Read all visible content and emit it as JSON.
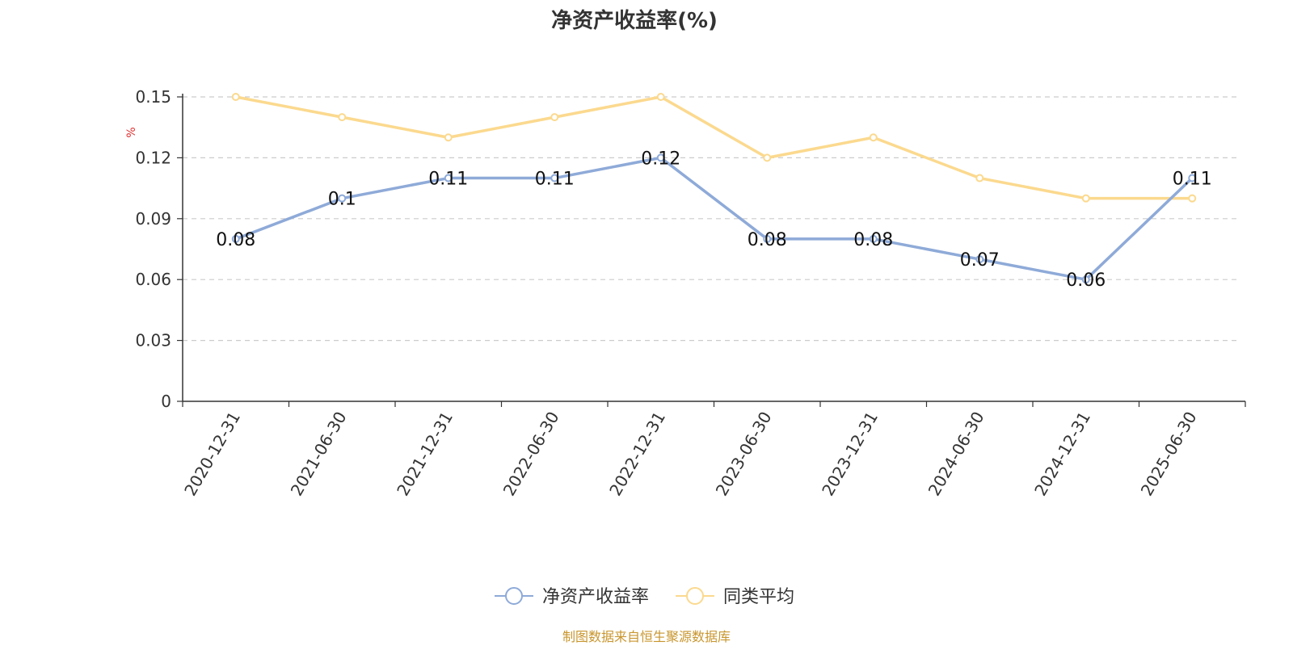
{
  "chart_data": {
    "type": "line",
    "title": "净资产收益率(%)",
    "ylabel": "%",
    "ylim": [
      0,
      0.15
    ],
    "yticks": [
      "0",
      "0.03",
      "0.06",
      "0.09",
      "0.12",
      "0.15"
    ],
    "grid": true,
    "legend_position": "bottom-center",
    "categories": [
      "2020-12-31",
      "2021-06-30",
      "2021-12-31",
      "2022-06-30",
      "2022-12-31",
      "2023-06-30",
      "2023-12-31",
      "2024-06-30",
      "2024-12-31",
      "2025-06-30"
    ],
    "series": [
      {
        "name": "净资产收益率",
        "color": "#8eaad8",
        "values": [
          0.08,
          0.1,
          0.11,
          0.11,
          0.12,
          0.08,
          0.08,
          0.07,
          0.06,
          0.11
        ],
        "labels": [
          "0.08",
          "0.1",
          "0.11",
          "0.11",
          "0.12",
          "0.08",
          "0.08",
          "0.07",
          "0.06",
          "0.11"
        ]
      },
      {
        "name": "同类平均",
        "color": "#fbd98e",
        "values": [
          0.15,
          0.14,
          0.13,
          0.14,
          0.15,
          0.12,
          0.13,
          0.11,
          0.1,
          0.1
        ]
      }
    ],
    "source": "制图数据来自恒生聚源数据库"
  }
}
